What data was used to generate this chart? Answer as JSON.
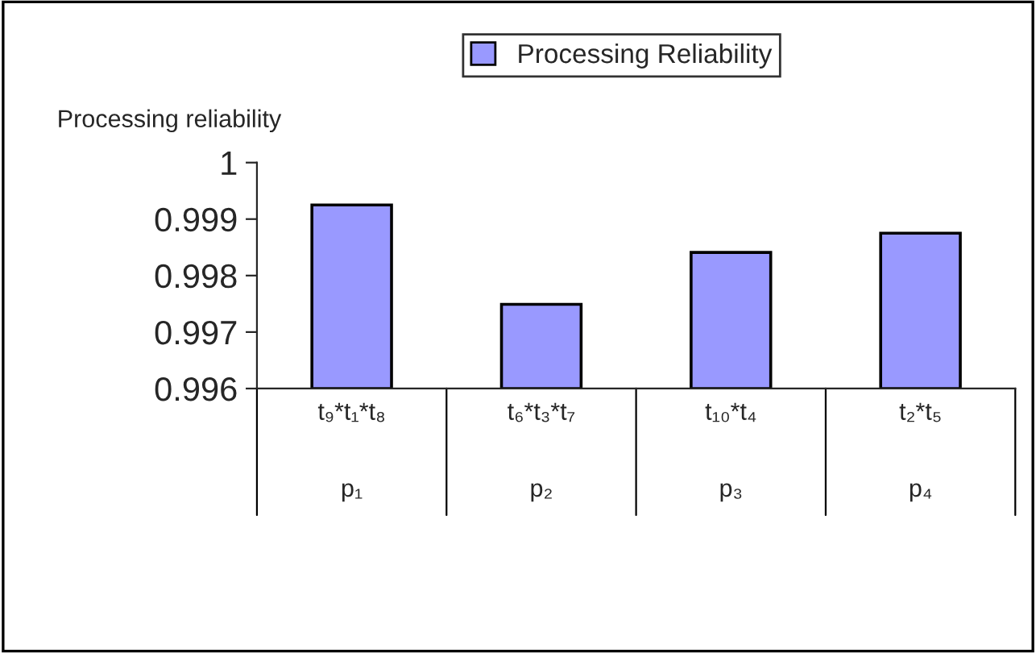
{
  "chart_data": {
    "type": "bar",
    "ylabel": "Processing reliability",
    "categories": [
      "t₉*t₁*t₈\np₁",
      "t₆*t₃*t₇\np₂",
      "t₁₀*t₄\np₃",
      "t₂*t₅\np₄"
    ],
    "series": [
      {
        "name": "Processing Reliability",
        "color": "#9999ff",
        "values": [
          0.99925,
          0.99749,
          0.99841,
          0.99875
        ]
      }
    ],
    "ylim": [
      0.996,
      1
    ],
    "yticks": [
      {
        "value": 0.996,
        "label": "0.996"
      },
      {
        "value": 0.997,
        "label": "0.997"
      },
      {
        "value": 0.998,
        "label": "0.998"
      },
      {
        "value": 0.999,
        "label": "0.999"
      },
      {
        "value": 1,
        "label": "1"
      }
    ],
    "grid": false,
    "legend": "top"
  }
}
